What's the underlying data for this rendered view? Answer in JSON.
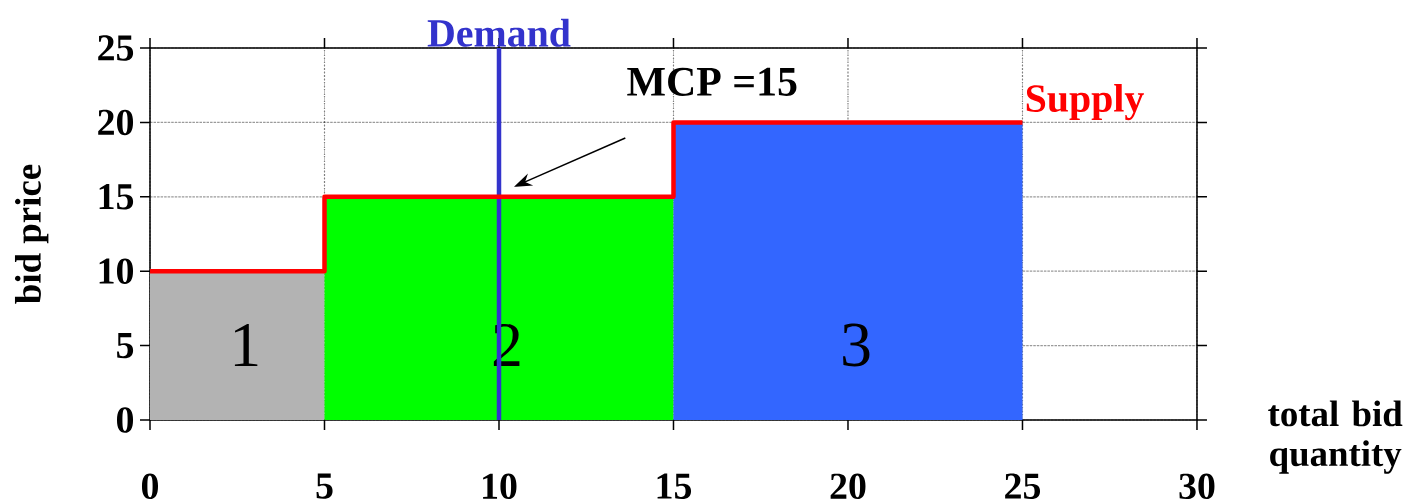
{
  "chart_data": {
    "type": "step",
    "xlabel": "total bid quantity",
    "ylabel": "bid price",
    "xlim": [
      0,
      30
    ],
    "xticks": [
      0,
      5,
      10,
      15,
      20,
      25,
      30
    ],
    "ylim": [
      0,
      25
    ],
    "yticks": [
      0,
      5,
      10,
      15,
      20,
      25
    ],
    "grid": true,
    "series": [
      {
        "type": "area",
        "name": "1",
        "color": "#b3b3b3",
        "x": [
          0,
          5
        ],
        "values": [
          10,
          10
        ]
      },
      {
        "type": "area",
        "name": "2",
        "color": "#00ff00",
        "x": [
          5,
          15
        ],
        "values": [
          15,
          15
        ]
      },
      {
        "type": "area",
        "name": "3",
        "color": "#3366ff",
        "x": [
          15,
          25
        ],
        "values": [
          20,
          20
        ]
      },
      {
        "name": "Supply",
        "color": "#ff0000",
        "x": [
          0,
          5,
          15,
          25
        ],
        "values": [
          10,
          15,
          20,
          20
        ]
      }
    ],
    "ref_lines": [
      {
        "axis": "x",
        "value": 10,
        "label": "Demand",
        "color": "#3333cc"
      }
    ],
    "annotations": [
      "MCP =15"
    ]
  }
}
